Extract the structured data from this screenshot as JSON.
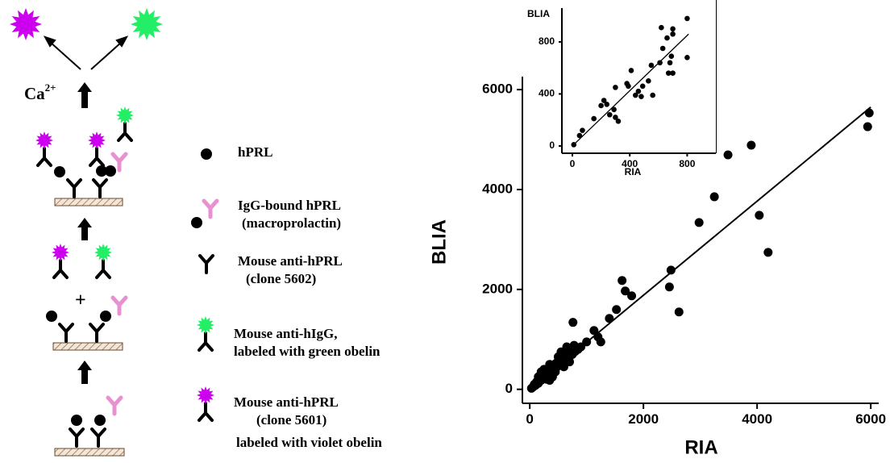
{
  "diagram": {
    "ca": "Ca",
    "ca_charge": "2+",
    "plus": "+"
  },
  "legend": [
    {
      "lines": [
        "hPRL"
      ]
    },
    {
      "lines": [
        "IgG-bound hPRL",
        "(macroprolactin)"
      ]
    },
    {
      "lines": [
        "Mouse anti-hPRL",
        "(clone 5602)"
      ]
    },
    {
      "lines": [
        "Mouse anti-hIgG,",
        "labeled with green obelin"
      ]
    },
    {
      "lines": [
        "Mouse anti-hPRL",
        "(clone 5601)",
        "labeled with violet obelin"
      ]
    }
  ],
  "chart_data": [
    {
      "type": "scatter",
      "x_label": "RIA",
      "y_label": "BLIA",
      "color": "#000000",
      "xlim": [
        -130,
        6140
      ],
      "ylim": [
        -280,
        6260
      ],
      "xticks": [
        0,
        2000,
        4000,
        6000
      ],
      "yticks": [
        0,
        2000,
        4000,
        6000
      ],
      "x": [
        5973,
        5945,
        3488,
        3897,
        3248,
        2979,
        4038,
        4194,
        1624,
        1680,
        1793,
        2485,
        2457,
        2626,
        1525,
        1130,
        1400,
        760,
        780,
        30,
        60,
        80,
        100,
        120,
        150,
        170,
        200,
        220,
        250,
        260,
        280,
        300,
        320,
        340,
        360,
        380,
        400,
        420,
        440,
        460,
        480,
        500,
        520,
        540,
        560,
        580,
        600,
        620,
        650,
        680,
        700,
        720,
        750,
        780,
        800,
        300,
        250,
        400,
        350,
        450,
        500,
        600,
        700,
        550,
        650,
        850,
        900,
        1000,
        1200,
        1250,
        200,
        150,
        350
      ],
      "y": [
        5533,
        5258,
        4694,
        4887,
        3855,
        3339,
        3484,
        2742,
        2178,
        1968,
        1871,
        2387,
        2049,
        1549,
        1597,
        1178,
        1420,
        1340,
        840,
        20,
        50,
        100,
        80,
        150,
        120,
        200,
        180,
        260,
        230,
        300,
        250,
        350,
        290,
        400,
        330,
        440,
        370,
        480,
        400,
        520,
        450,
        560,
        480,
        600,
        520,
        640,
        560,
        700,
        600,
        760,
        650,
        820,
        700,
        880,
        760,
        200,
        400,
        250,
        500,
        350,
        650,
        450,
        550,
        750,
        850,
        800,
        850,
        950,
        1050,
        950,
        350,
        250,
        180
      ],
      "trend_line": {
        "x": [
          0,
          6000
        ],
        "y": [
          0,
          5650
        ]
      }
    },
    {
      "type": "scatter",
      "x_label": "RIA",
      "y_label": "BLIA",
      "color": "#000000",
      "xlim": [
        -73,
        1000
      ],
      "ylim": [
        -56,
        1060
      ],
      "xticks": [
        0,
        400,
        800
      ],
      "yticks": [
        0,
        400,
        800
      ],
      "x": [
        10,
        50,
        70,
        150,
        200,
        220,
        240,
        260,
        290,
        300,
        320,
        300,
        380,
        390,
        410,
        440,
        460,
        490,
        530,
        480,
        560,
        550,
        610,
        630,
        670,
        700,
        690,
        660,
        700,
        700,
        620,
        800,
        800,
        680
      ],
      "y": [
        10,
        80,
        120,
        210,
        310,
        350,
        320,
        240,
        280,
        220,
        190,
        450,
        480,
        460,
        580,
        390,
        420,
        460,
        500,
        380,
        390,
        620,
        640,
        750,
        560,
        560,
        690,
        830,
        860,
        900,
        910,
        980,
        680,
        640
      ],
      "trend_line": {
        "x": [
          0,
          810
        ],
        "y": [
          0,
          860
        ]
      }
    }
  ]
}
